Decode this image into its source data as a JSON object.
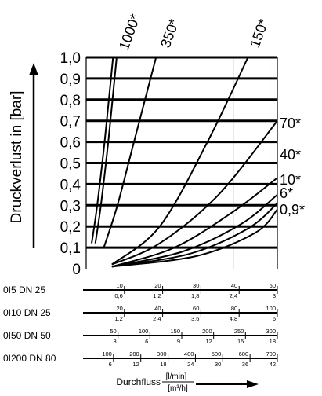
{
  "chart_data": {
    "type": "line",
    "ylabel": "Druckverlust in [bar]",
    "xlabel": "Durchfluss",
    "x_units": [
      "[l/min]",
      "[m³/h]"
    ],
    "ylim": [
      0,
      1.0
    ],
    "y_ticks": [
      "0",
      "0,1",
      "0,2",
      "0,3",
      "0,4",
      "0,5",
      "0,6",
      "0,7",
      "0,8",
      "0,9",
      "1,0"
    ],
    "x_axis_unit": "l/min (0I5 DN 25 scale)",
    "xlim": [
      0,
      52
    ],
    "series": [
      {
        "name": "1000*",
        "points": [
          [
            1.5,
            0.12
          ],
          [
            3,
            0.3
          ],
          [
            5,
            0.6
          ],
          [
            7.3,
            1.0
          ]
        ]
      },
      {
        "name": "1000*",
        "points": [
          [
            2.5,
            0.12
          ],
          [
            4,
            0.3
          ],
          [
            6,
            0.6
          ],
          [
            8.3,
            1.0
          ]
        ]
      },
      {
        "name": "350*",
        "points": [
          [
            4.8,
            0.1
          ],
          [
            8.5,
            0.3
          ],
          [
            13,
            0.6
          ],
          [
            19,
            1.0
          ]
        ]
      },
      {
        "name": "150*",
        "points": [
          [
            7,
            0.02
          ],
          [
            20,
            0.2
          ],
          [
            33,
            0.6
          ],
          [
            44,
            1.0
          ]
        ]
      },
      {
        "name": "70*",
        "points": [
          [
            7,
            0.02
          ],
          [
            20,
            0.12
          ],
          [
            36,
            0.35
          ],
          [
            52,
            0.7
          ]
        ]
      },
      {
        "name": "40*",
        "points": [
          [
            7,
            0.01
          ],
          [
            24,
            0.1
          ],
          [
            40,
            0.27
          ],
          [
            52,
            0.43
          ]
        ]
      },
      {
        "name": "10*",
        "points": [
          [
            7,
            0.01
          ],
          [
            26,
            0.08
          ],
          [
            42,
            0.21
          ],
          [
            52,
            0.35
          ]
        ]
      },
      {
        "name": "6*",
        "points": [
          [
            7,
            0.01
          ],
          [
            28,
            0.07
          ],
          [
            44,
            0.19
          ],
          [
            52,
            0.31
          ]
        ]
      },
      {
        "name": "0,9*",
        "points": [
          [
            7,
            0.01
          ],
          [
            30,
            0.06
          ],
          [
            46,
            0.17
          ],
          [
            52,
            0.28
          ]
        ]
      }
    ],
    "flow_scales": [
      {
        "label": "0I5 DN 25",
        "lmin": [
          {
            "v": 10,
            "t": "10"
          },
          {
            "v": 20,
            "t": "20"
          },
          {
            "v": 30,
            "t": "30"
          },
          {
            "v": 40,
            "t": "40"
          },
          {
            "v": 50,
            "t": "50"
          }
        ],
        "m3h": [
          {
            "v": 10,
            "t": "0,6"
          },
          {
            "v": 20,
            "t": "1,2"
          },
          {
            "v": 30,
            "t": "1,8"
          },
          {
            "v": 40,
            "t": "2,4"
          },
          {
            "v": 50,
            "t": "3"
          }
        ]
      },
      {
        "label": "0I10 DN 25",
        "lmin": [
          {
            "v": 20,
            "t": "20"
          },
          {
            "v": 40,
            "t": "40"
          },
          {
            "v": 60,
            "t": "60"
          },
          {
            "v": 80,
            "t": "80"
          },
          {
            "v": 100,
            "t": "100"
          }
        ],
        "m3h": [
          {
            "v": 20,
            "t": "1,2"
          },
          {
            "v": 40,
            "t": "2,4"
          },
          {
            "v": 60,
            "t": "3,6"
          },
          {
            "v": 80,
            "t": "4,8"
          },
          {
            "v": 100,
            "t": "6"
          }
        ]
      },
      {
        "label": "0I50 DN 50",
        "lmin": [
          {
            "v": 50,
            "t": "50"
          },
          {
            "v": 100,
            "t": "100"
          },
          {
            "v": 150,
            "t": "150"
          },
          {
            "v": 200,
            "t": "200"
          },
          {
            "v": 250,
            "t": "250"
          },
          {
            "v": 300,
            "t": "300"
          }
        ],
        "m3h": [
          {
            "v": 50,
            "t": "3"
          },
          {
            "v": 100,
            "t": "6"
          },
          {
            "v": 150,
            "t": "9"
          },
          {
            "v": 200,
            "t": "12"
          },
          {
            "v": 250,
            "t": "15"
          },
          {
            "v": 300,
            "t": "18"
          }
        ]
      },
      {
        "label": "0I200 DN 80",
        "lmin": [
          {
            "v": 100,
            "t": "100"
          },
          {
            "v": 200,
            "t": "200"
          },
          {
            "v": 300,
            "t": "300"
          },
          {
            "v": 400,
            "t": "400"
          },
          {
            "v": 500,
            "t": "500"
          },
          {
            "v": 600,
            "t": "600"
          },
          {
            "v": 700,
            "t": "700"
          }
        ],
        "m3h": [
          {
            "v": 100,
            "t": "6"
          },
          {
            "v": 200,
            "t": "12"
          },
          {
            "v": 300,
            "t": "18"
          },
          {
            "v": 400,
            "t": "24"
          },
          {
            "v": 500,
            "t": "30"
          },
          {
            "v": 600,
            "t": "36"
          },
          {
            "v": 700,
            "t": "42"
          }
        ]
      }
    ]
  }
}
